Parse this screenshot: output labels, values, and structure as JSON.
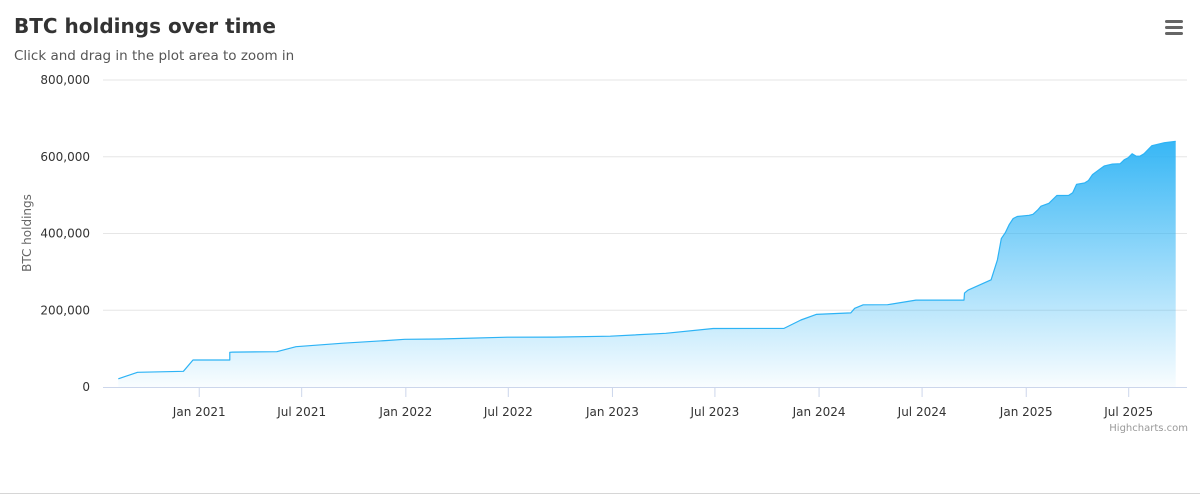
{
  "chart_data": {
    "type": "area",
    "title": "BTC holdings over time",
    "subtitle": "Click and drag in the plot area to zoom in",
    "ylabel": "BTC holdings",
    "xlabel": "",
    "ylim": [
      0,
      800000
    ],
    "yticks": [
      0,
      200000,
      400000,
      600000,
      800000
    ],
    "ytick_labels": [
      "0",
      "200,000",
      "400,000",
      "600,000",
      "800,000"
    ],
    "xticks": [
      "2021-01-01",
      "2021-07-01",
      "2022-01-01",
      "2022-07-01",
      "2023-01-01",
      "2023-07-01",
      "2024-01-01",
      "2024-07-01",
      "2025-01-01",
      "2025-07-01"
    ],
    "xtick_labels": [
      "Jan 2021",
      "Jul 2021",
      "Jan 2022",
      "Jul 2022",
      "Jan 2023",
      "Jul 2023",
      "Jan 2024",
      "Jul 2024",
      "Jan 2025",
      "Jul 2025"
    ],
    "grid": true,
    "legend": "none",
    "series_color": "#2db3f5",
    "series": [
      {
        "points": [
          [
            "2020-08-11",
            21454
          ],
          [
            "2020-09-14",
            38250
          ],
          [
            "2020-12-04",
            40824
          ],
          [
            "2020-12-21",
            70470
          ],
          [
            "2021-02-24",
            70470
          ],
          [
            "2021-02-24",
            90531
          ],
          [
            "2021-03-01",
            91064
          ],
          [
            "2021-05-18",
            92079
          ],
          [
            "2021-06-21",
            105085
          ],
          [
            "2021-09-12",
            114042
          ],
          [
            "2021-11-29",
            121044
          ],
          [
            "2021-12-30",
            124391
          ],
          [
            "2022-03-01",
            125051
          ],
          [
            "2022-06-29",
            129699
          ],
          [
            "2022-09-20",
            130000
          ],
          [
            "2022-12-28",
            132500
          ],
          [
            "2023-04-05",
            140000
          ],
          [
            "2023-06-28",
            152333
          ],
          [
            "2023-10-31",
            152800
          ],
          [
            "2023-11-30",
            174530
          ],
          [
            "2023-12-27",
            189150
          ],
          [
            "2024-02-26",
            193000
          ],
          [
            "2024-03-04",
            205000
          ],
          [
            "2024-03-19",
            214246
          ],
          [
            "2024-05-01",
            214400
          ],
          [
            "2024-06-20",
            226331
          ],
          [
            "2024-09-13",
            226500
          ],
          [
            "2024-09-14",
            244800
          ],
          [
            "2024-09-20",
            252220
          ],
          [
            "2024-10-31",
            279420
          ],
          [
            "2024-11-11",
            331200
          ],
          [
            "2024-11-18",
            386700
          ],
          [
            "2024-11-25",
            402100
          ],
          [
            "2024-12-02",
            423650
          ],
          [
            "2024-12-09",
            439000
          ],
          [
            "2024-12-16",
            444262
          ],
          [
            "2024-12-30",
            446400
          ],
          [
            "2025-01-06",
            447470
          ],
          [
            "2025-01-13",
            450000
          ],
          [
            "2025-01-21",
            461000
          ],
          [
            "2025-01-27",
            471107
          ],
          [
            "2025-02-10",
            478740
          ],
          [
            "2025-02-24",
            499096
          ],
          [
            "2025-03-17",
            499226
          ],
          [
            "2025-03-24",
            506137
          ],
          [
            "2025-03-31",
            528185
          ],
          [
            "2025-04-14",
            531644
          ],
          [
            "2025-04-21",
            538200
          ],
          [
            "2025-04-28",
            553555
          ],
          [
            "2025-05-12",
            568840
          ],
          [
            "2025-05-19",
            576230
          ],
          [
            "2025-06-02",
            580955
          ],
          [
            "2025-06-16",
            582000
          ],
          [
            "2025-06-23",
            592100
          ],
          [
            "2025-06-30",
            597325
          ],
          [
            "2025-07-07",
            607770
          ],
          [
            "2025-07-14",
            601550
          ],
          [
            "2025-07-21",
            601550
          ],
          [
            "2025-07-28",
            607770
          ],
          [
            "2025-08-11",
            628791
          ],
          [
            "2025-09-02",
            636505
          ],
          [
            "2025-09-22",
            640031
          ]
        ]
      }
    ]
  },
  "credits": "Highcharts.com",
  "menu_icon": "hamburger-menu-icon"
}
